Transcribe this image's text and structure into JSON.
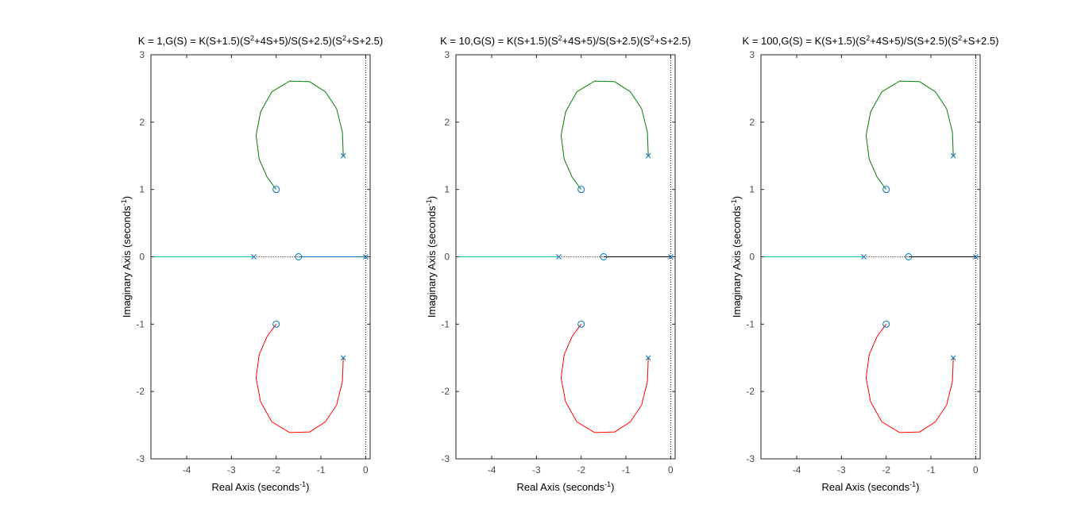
{
  "chart_data": [
    {
      "type": "line",
      "title_parts": [
        "K = 1,G(S) = K(S+1.5)(S",
        "2",
        "+4S+5)/S(S+2.5)(S",
        "2",
        "+S+2.5)"
      ],
      "xlabel_parts": [
        "Real Axis (seconds",
        "-1",
        ")"
      ],
      "ylabel_parts": [
        "Imaginary Axis (seconds",
        "-1",
        ")"
      ],
      "xlim": [
        -4.8,
        0.1
      ],
      "ylim": [
        -3,
        3
      ],
      "xticks": [
        -4,
        -3,
        -2,
        -1,
        0
      ],
      "yticks": [
        -3,
        -2,
        -1,
        0,
        1,
        2,
        3
      ],
      "grid": false,
      "poles": [
        [
          0,
          0
        ],
        [
          -2.5,
          0
        ],
        [
          -0.5,
          1.5
        ],
        [
          -0.5,
          -1.5
        ]
      ],
      "zeros": [
        [
          -1.5,
          0
        ],
        [
          -2,
          1
        ],
        [
          -2,
          -1
        ]
      ],
      "series": [
        {
          "color": "#0072bd",
          "style": "solid",
          "points": [
            [
              -1.5,
              0
            ],
            [
              0,
              0
            ]
          ]
        },
        {
          "color": "#00bfbf",
          "style": "solid",
          "points": [
            [
              -4.8,
              0
            ],
            [
              -2.5,
              0
            ]
          ]
        },
        {
          "color": "#008000",
          "style": "solid",
          "points": [
            [
              -0.5,
              1.5
            ],
            [
              -0.52,
              1.85
            ],
            [
              -0.65,
              2.2
            ],
            [
              -0.9,
              2.45
            ],
            [
              -1.25,
              2.6
            ],
            [
              -1.7,
              2.61
            ],
            [
              -2.1,
              2.45
            ],
            [
              -2.35,
              2.15
            ],
            [
              -2.45,
              1.8
            ],
            [
              -2.38,
              1.45
            ],
            [
              -2.2,
              1.18
            ],
            [
              -2.0,
              1.0
            ]
          ]
        },
        {
          "color": "#ff0000",
          "style": "solid",
          "points": [
            [
              -0.5,
              -1.5
            ],
            [
              -0.52,
              -1.85
            ],
            [
              -0.65,
              -2.2
            ],
            [
              -0.9,
              -2.45
            ],
            [
              -1.25,
              -2.6
            ],
            [
              -1.7,
              -2.61
            ],
            [
              -2.1,
              -2.45
            ],
            [
              -2.35,
              -2.15
            ],
            [
              -2.45,
              -1.8
            ],
            [
              -2.38,
              -1.45
            ],
            [
              -2.2,
              -1.18
            ],
            [
              -2.0,
              -1.0
            ]
          ]
        },
        {
          "color": "#000000",
          "style": "dotted",
          "points": [
            [
              -2.5,
              0
            ],
            [
              -1.5,
              0
            ]
          ]
        },
        {
          "color": "#000000",
          "style": "dotted",
          "points": [
            [
              0,
              -3
            ],
            [
              0,
              3
            ]
          ]
        }
      ],
      "marker_color": "#0072bd"
    },
    {
      "type": "line",
      "title_parts": [
        "K = 10,G(S) = K(S+1.5)(S",
        "2",
        "+4S+5)/S(S+2.5)(S",
        "2",
        "+S+2.5)"
      ],
      "xlabel_parts": [
        "Real Axis (seconds",
        "-1",
        ")"
      ],
      "ylabel_parts": [
        "Imaginary Axis (seconds",
        "-1",
        ")"
      ],
      "xlim": [
        -4.8,
        0.1
      ],
      "ylim": [
        -3,
        3
      ],
      "xticks": [
        -4,
        -3,
        -2,
        -1,
        0
      ],
      "yticks": [
        -3,
        -2,
        -1,
        0,
        1,
        2,
        3
      ],
      "grid": false,
      "poles": [
        [
          0,
          0
        ],
        [
          -2.5,
          0
        ],
        [
          -0.5,
          1.5
        ],
        [
          -0.5,
          -1.5
        ]
      ],
      "zeros": [
        [
          -1.5,
          0
        ],
        [
          -2,
          1
        ],
        [
          -2,
          -1
        ]
      ],
      "series": [
        {
          "color": "#000000",
          "style": "solid",
          "points": [
            [
              -1.5,
              0
            ],
            [
              0,
              0
            ]
          ]
        },
        {
          "color": "#00bfbf",
          "style": "solid",
          "points": [
            [
              -4.8,
              0
            ],
            [
              -2.5,
              0
            ]
          ]
        },
        {
          "color": "#008000",
          "style": "solid",
          "points": [
            [
              -0.5,
              1.5
            ],
            [
              -0.52,
              1.85
            ],
            [
              -0.65,
              2.2
            ],
            [
              -0.9,
              2.45
            ],
            [
              -1.25,
              2.6
            ],
            [
              -1.7,
              2.61
            ],
            [
              -2.1,
              2.45
            ],
            [
              -2.35,
              2.15
            ],
            [
              -2.45,
              1.8
            ],
            [
              -2.38,
              1.45
            ],
            [
              -2.2,
              1.18
            ],
            [
              -2.0,
              1.0
            ]
          ]
        },
        {
          "color": "#ff0000",
          "style": "solid",
          "points": [
            [
              -0.5,
              -1.5
            ],
            [
              -0.52,
              -1.85
            ],
            [
              -0.65,
              -2.2
            ],
            [
              -0.9,
              -2.45
            ],
            [
              -1.25,
              -2.6
            ],
            [
              -1.7,
              -2.61
            ],
            [
              -2.1,
              -2.45
            ],
            [
              -2.35,
              -2.15
            ],
            [
              -2.45,
              -1.8
            ],
            [
              -2.38,
              -1.45
            ],
            [
              -2.2,
              -1.18
            ],
            [
              -2.0,
              -1.0
            ]
          ]
        },
        {
          "color": "#000000",
          "style": "dotted",
          "points": [
            [
              -2.5,
              0
            ],
            [
              -1.5,
              0
            ]
          ]
        },
        {
          "color": "#000000",
          "style": "dotted",
          "points": [
            [
              0,
              -3
            ],
            [
              0,
              3
            ]
          ]
        }
      ],
      "marker_color": "#0072bd"
    },
    {
      "type": "line",
      "title_parts": [
        "K = 100,G(S) = K(S+1.5)(S",
        "2",
        "+4S+5)/S(S+2.5)(S",
        "2",
        "+S+2.5)"
      ],
      "xlabel_parts": [
        "Real Axis (seconds",
        "-1",
        ")"
      ],
      "ylabel_parts": [
        "Imaginary Axis (seconds",
        "-1",
        ")"
      ],
      "xlim": [
        -4.8,
        0.1
      ],
      "ylim": [
        -3,
        3
      ],
      "xticks": [
        -4,
        -3,
        -2,
        -1,
        0
      ],
      "yticks": [
        -3,
        -2,
        -1,
        0,
        1,
        2,
        3
      ],
      "grid": false,
      "poles": [
        [
          0,
          0
        ],
        [
          -2.5,
          0
        ],
        [
          -0.5,
          1.5
        ],
        [
          -0.5,
          -1.5
        ]
      ],
      "zeros": [
        [
          -1.5,
          0
        ],
        [
          -2,
          1
        ],
        [
          -2,
          -1
        ]
      ],
      "series": [
        {
          "color": "#000000",
          "style": "solid",
          "points": [
            [
              -1.5,
              0
            ],
            [
              0,
              0
            ]
          ]
        },
        {
          "color": "#00bfbf",
          "style": "solid",
          "points": [
            [
              -4.8,
              0
            ],
            [
              -2.5,
              0
            ]
          ]
        },
        {
          "color": "#008000",
          "style": "solid",
          "points": [
            [
              -0.5,
              1.5
            ],
            [
              -0.52,
              1.85
            ],
            [
              -0.65,
              2.2
            ],
            [
              -0.9,
              2.45
            ],
            [
              -1.25,
              2.6
            ],
            [
              -1.7,
              2.61
            ],
            [
              -2.1,
              2.45
            ],
            [
              -2.35,
              2.15
            ],
            [
              -2.45,
              1.8
            ],
            [
              -2.38,
              1.45
            ],
            [
              -2.2,
              1.18
            ],
            [
              -2.0,
              1.0
            ]
          ]
        },
        {
          "color": "#ff0000",
          "style": "solid",
          "points": [
            [
              -0.5,
              -1.5
            ],
            [
              -0.52,
              -1.85
            ],
            [
              -0.65,
              -2.2
            ],
            [
              -0.9,
              -2.45
            ],
            [
              -1.25,
              -2.6
            ],
            [
              -1.7,
              -2.61
            ],
            [
              -2.1,
              -2.45
            ],
            [
              -2.35,
              -2.15
            ],
            [
              -2.45,
              -1.8
            ],
            [
              -2.38,
              -1.45
            ],
            [
              -2.2,
              -1.18
            ],
            [
              -2.0,
              -1.0
            ]
          ]
        },
        {
          "color": "#000000",
          "style": "dotted",
          "points": [
            [
              -2.5,
              0
            ],
            [
              -1.5,
              0
            ]
          ]
        },
        {
          "color": "#000000",
          "style": "dotted",
          "points": [
            [
              0,
              -3
            ],
            [
              0,
              3
            ]
          ]
        }
      ],
      "marker_color": "#0072bd"
    }
  ]
}
